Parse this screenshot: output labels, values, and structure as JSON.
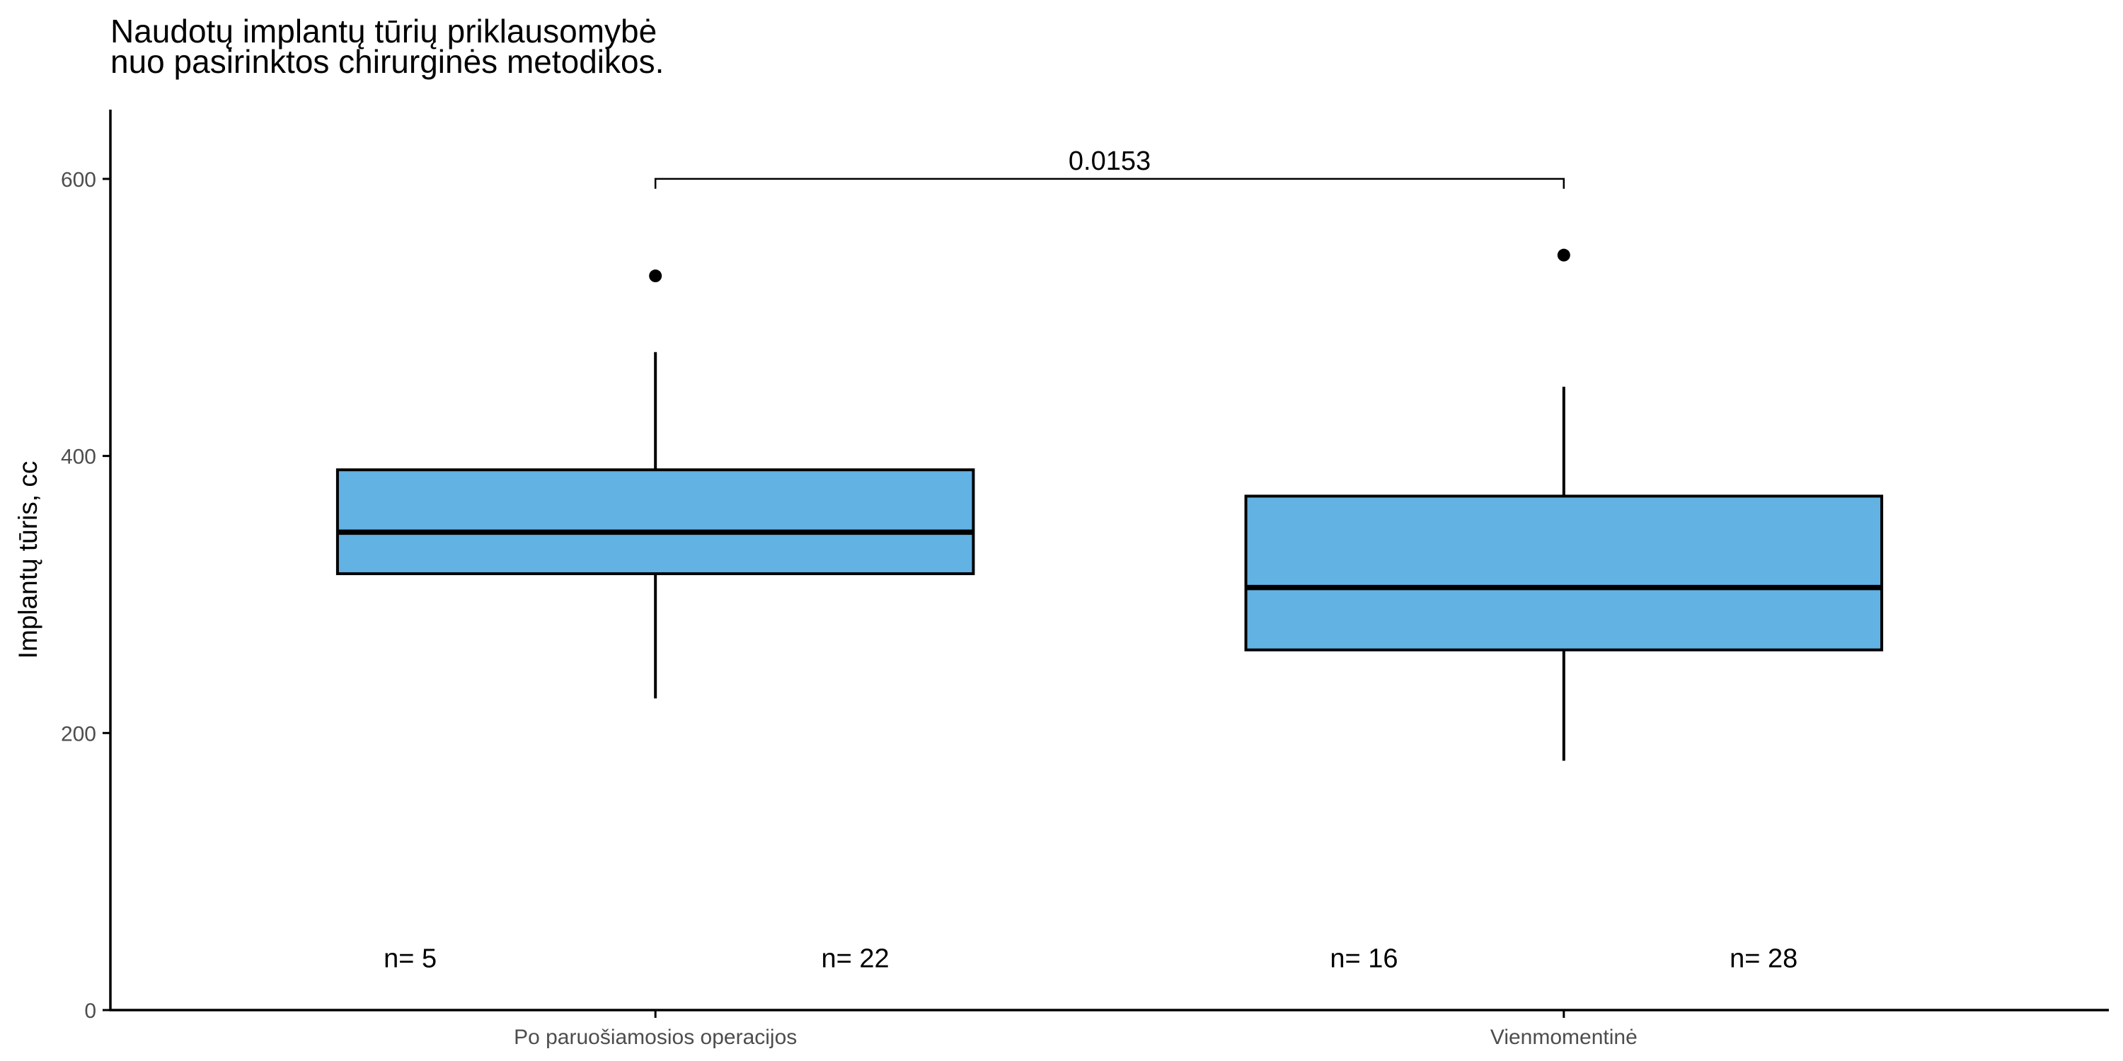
{
  "chart_data": {
    "type": "boxplot",
    "title_lines": [
      "Naudotų implantų tūrių priklausomybė",
      "nuo pasirinktos chirurginės metodikos."
    ],
    "xlabel": "",
    "ylabel": "Implantų tūris, cc",
    "ylim": [
      0,
      650
    ],
    "yticks": [
      0,
      200,
      400,
      600
    ],
    "grid": false,
    "categories": [
      "Po paruošiamosios operacijos",
      "Vienmomentinė"
    ],
    "boxes": [
      {
        "category": "Po paruošiamosios operacijos",
        "whisker_low": 225,
        "q1": 315,
        "median": 345,
        "q3": 390,
        "whisker_high": 475,
        "outliers": [
          530
        ]
      },
      {
        "category": "Vienmomentinė",
        "whisker_low": 180,
        "q1": 260,
        "median": 305,
        "q3": 371,
        "whisker_high": 450,
        "outliers": [
          545
        ]
      }
    ],
    "comparison": {
      "from": "Po paruošiamosios operacijos",
      "to": "Vienmomentinė",
      "y": 600,
      "label": "0.0153"
    },
    "count_labels": [
      {
        "text": "n= 5",
        "x": 0.73,
        "y": 38
      },
      {
        "text": "n= 22",
        "x": 1.22,
        "y": 38
      },
      {
        "text": "n= 16",
        "x": 1.78,
        "y": 38
      },
      {
        "text": "n= 28",
        "x": 2.22,
        "y": 38
      }
    ],
    "colors": {
      "box_fill": "#62b2e4",
      "line": "#000000",
      "axis_text": "#4d4d4d",
      "text": "#000000"
    }
  }
}
